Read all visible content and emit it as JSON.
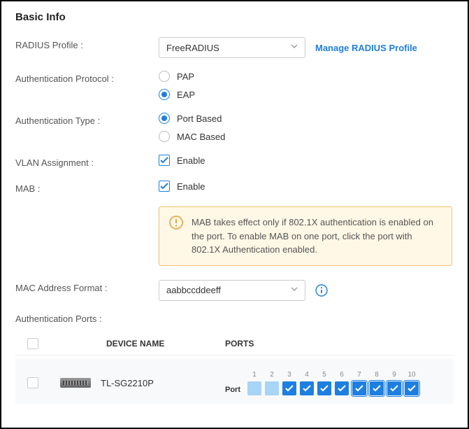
{
  "section_title": "Basic Info",
  "radius_profile": {
    "label": "RADIUS Profile :",
    "selected": "FreeRADIUS",
    "manage_link": "Manage RADIUS Profile"
  },
  "auth_protocol": {
    "label": "Authentication Protocol :",
    "options": [
      {
        "label": "PAP",
        "selected": false
      },
      {
        "label": "EAP",
        "selected": true
      }
    ]
  },
  "auth_type": {
    "label": "Authentication Type :",
    "options": [
      {
        "label": "Port Based",
        "selected": true
      },
      {
        "label": "MAC Based",
        "selected": false
      }
    ]
  },
  "vlan_assignment": {
    "label": "VLAN Assignment :",
    "option_label": "Enable",
    "checked": true
  },
  "mab": {
    "label": "MAB :",
    "option_label": "Enable",
    "checked": true
  },
  "mab_alert": "MAB takes effect only if 802.1X authentication is enabled on the port. To enable MAB on one port, click the port with 802.1X Authentication enabled.",
  "mac_format": {
    "label": "MAC Address Format :",
    "selected": "aabbccddeeff"
  },
  "auth_ports": {
    "label": "Authentication Ports :",
    "columns": {
      "device": "DEVICE NAME",
      "ports": "PORTS"
    },
    "device_name": "TL-SG2210P",
    "port_type_label": "Port",
    "ports": [
      {
        "num": "1",
        "checked": false,
        "bordered": false
      },
      {
        "num": "2",
        "checked": false,
        "bordered": false
      },
      {
        "num": "3",
        "checked": true,
        "bordered": false
      },
      {
        "num": "4",
        "checked": true,
        "bordered": false
      },
      {
        "num": "5",
        "checked": true,
        "bordered": false
      },
      {
        "num": "6",
        "checked": true,
        "bordered": false
      },
      {
        "num": "7",
        "checked": true,
        "bordered": true
      },
      {
        "num": "8",
        "checked": true,
        "bordered": true
      },
      {
        "num": "9",
        "checked": true,
        "bordered": true
      },
      {
        "num": "10",
        "checked": true,
        "bordered": true
      }
    ]
  },
  "colors": {
    "accent": "#1e7fe0",
    "alert_border": "#f0c36d",
    "alert_bg": "#fff8e6",
    "port_unchecked": "#a8d4f5",
    "port_checked": "#1e7fe0"
  }
}
